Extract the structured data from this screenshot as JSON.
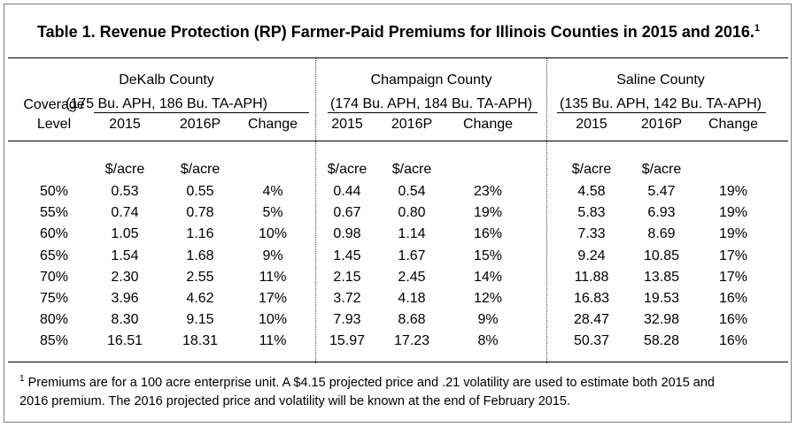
{
  "title": "Table 1.  Revenue Protection (RP) Farmer-Paid Premiums for Illinois Counties in 2015 and 2016.",
  "title_footnote_mark": "1",
  "coverage_header": [
    "",
    "Coverage",
    "Level"
  ],
  "counties": [
    {
      "name": "DeKalb County",
      "aph": "(175 Bu. APH, 186 Bu. TA-APH)"
    },
    {
      "name": "Champaign County",
      "aph": "(174 Bu. APH, 184 Bu. TA-APH)"
    },
    {
      "name": "Saline County",
      "aph": "(135 Bu. APH, 142 Bu. TA-APH)"
    }
  ],
  "col_headers": [
    "2015",
    "2016P",
    "Change"
  ],
  "unit_label": "$/acre",
  "rows": [
    {
      "level": "50%",
      "dekalb": [
        "0.53",
        "0.55",
        "4%"
      ],
      "champaign": [
        "0.44",
        "0.54",
        "23%"
      ],
      "saline": [
        "4.58",
        "5.47",
        "19%"
      ]
    },
    {
      "level": "55%",
      "dekalb": [
        "0.74",
        "0.78",
        "5%"
      ],
      "champaign": [
        "0.67",
        "0.80",
        "19%"
      ],
      "saline": [
        "5.83",
        "6.93",
        "19%"
      ]
    },
    {
      "level": "60%",
      "dekalb": [
        "1.05",
        "1.16",
        "10%"
      ],
      "champaign": [
        "0.98",
        "1.14",
        "16%"
      ],
      "saline": [
        "7.33",
        "8.69",
        "19%"
      ]
    },
    {
      "level": "65%",
      "dekalb": [
        "1.54",
        "1.68",
        "9%"
      ],
      "champaign": [
        "1.45",
        "1.67",
        "15%"
      ],
      "saline": [
        "9.24",
        "10.85",
        "17%"
      ]
    },
    {
      "level": "70%",
      "dekalb": [
        "2.30",
        "2.55",
        "11%"
      ],
      "champaign": [
        "2.15",
        "2.45",
        "14%"
      ],
      "saline": [
        "11.88",
        "13.85",
        "17%"
      ]
    },
    {
      "level": "75%",
      "dekalb": [
        "3.96",
        "4.62",
        "17%"
      ],
      "champaign": [
        "3.72",
        "4.18",
        "12%"
      ],
      "saline": [
        "16.83",
        "19.53",
        "16%"
      ]
    },
    {
      "level": "80%",
      "dekalb": [
        "8.30",
        "9.15",
        "10%"
      ],
      "champaign": [
        "7.93",
        "8.68",
        "9%"
      ],
      "saline": [
        "28.47",
        "32.98",
        "16%"
      ]
    },
    {
      "level": "85%",
      "dekalb": [
        "16.51",
        "18.31",
        "11%"
      ],
      "champaign": [
        "15.97",
        "17.23",
        "8%"
      ],
      "saline": [
        "50.37",
        "58.28",
        "16%"
      ]
    }
  ],
  "footnote_mark": "1",
  "footnote_line1": " Premiums are for a 100 acre enterprise unit.  A $4.15 projected price and .21 volatility are used to estimate both 2015 and",
  "footnote_line2": "2016 premium.  The 2016 projected price and volatility will be known at the end of February 2015."
}
